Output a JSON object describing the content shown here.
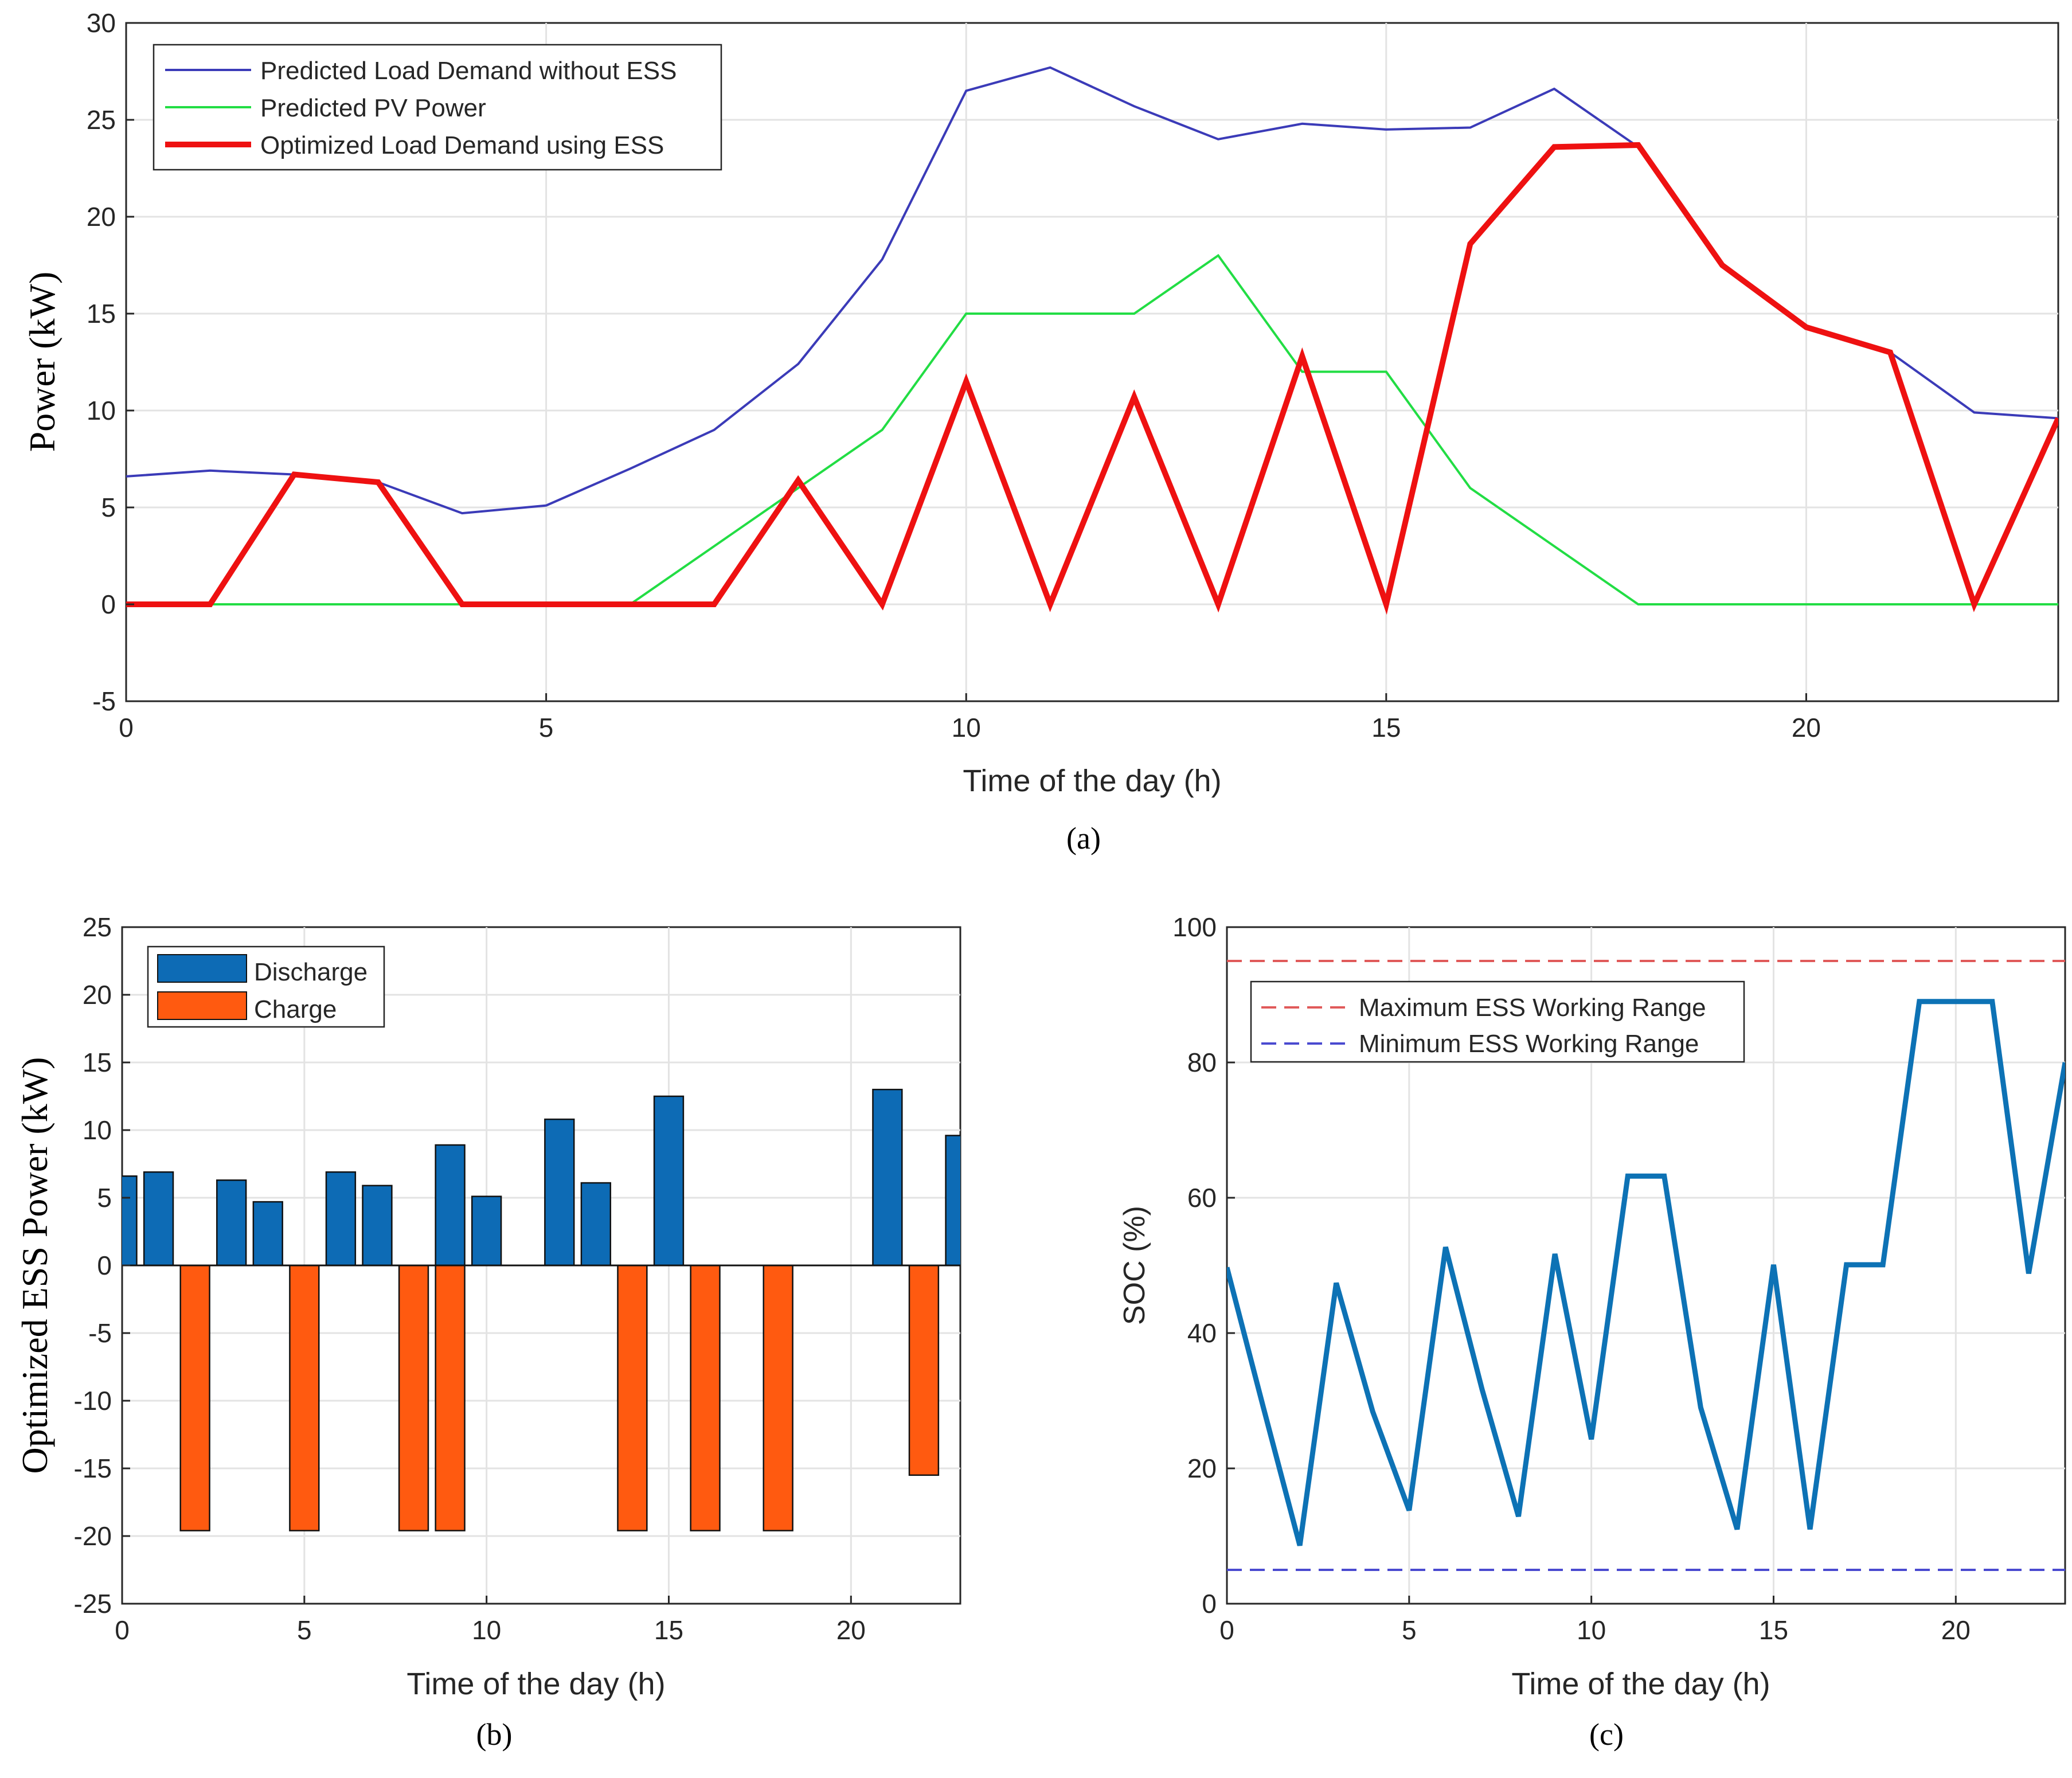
{
  "panels": {
    "a": {
      "caption": "(a)",
      "chart_data": {
        "type": "line",
        "title": "",
        "xlabel": "Time of the day (h)",
        "ylabel": "Power (kW)",
        "xlim": [
          0,
          23
        ],
        "ylim": [
          -5,
          30
        ],
        "xticks": [
          "0",
          "5",
          "10",
          "15",
          "20"
        ],
        "yticks": [
          "-5",
          "0",
          "5",
          "10",
          "15",
          "20",
          "25",
          "30"
        ],
        "x": [
          0,
          1,
          2,
          3,
          4,
          5,
          6,
          7,
          8,
          9,
          10,
          11,
          12,
          13,
          14,
          15,
          16,
          17,
          18,
          19,
          20,
          21,
          22,
          23
        ],
        "legend_position": "top-left",
        "series": [
          {
            "name": "Predicted Load Demand without ESS",
            "color": "#3b3bb8",
            "values": [
              6.6,
              6.9,
              6.7,
              6.3,
              4.7,
              5.1,
              7.0,
              9.0,
              12.4,
              17.8,
              26.5,
              27.7,
              25.7,
              24.0,
              24.8,
              24.5,
              24.6,
              26.6,
              23.6,
              17.5,
              14.3,
              13.0,
              9.9,
              9.6
            ]
          },
          {
            "name": "Predicted PV Power",
            "color": "#22dd44",
            "values": [
              0,
              0,
              0,
              0,
              0,
              0,
              0,
              3.0,
              6.0,
              9.0,
              15.0,
              15.0,
              15.0,
              18.0,
              12.0,
              12.0,
              6.0,
              3.0,
              0,
              0,
              0,
              0,
              0,
              0
            ]
          },
          {
            "name": "Optimized Load Demand using ESS",
            "color": "#ee1111",
            "values": [
              0,
              0,
              6.7,
              6.3,
              0,
              0,
              0,
              0,
              6.4,
              0,
              11.5,
              0,
              10.7,
              0,
              12.8,
              0,
              18.6,
              23.6,
              23.7,
              17.5,
              14.3,
              13.0,
              0,
              9.6
            ]
          }
        ]
      }
    },
    "b": {
      "caption": "(b)",
      "chart_data": {
        "type": "bar",
        "title": "",
        "xlabel": "Time of the day (h)",
        "ylabel": "Optimized ESS Power (kW)",
        "xlim": [
          0,
          23
        ],
        "ylim": [
          -25,
          25
        ],
        "xticks": [
          "0",
          "5",
          "10",
          "15",
          "20"
        ],
        "yticks": [
          "-25",
          "-20",
          "-15",
          "-10",
          "-5",
          "0",
          "5",
          "10",
          "15",
          "20",
          "25"
        ],
        "x": [
          0,
          1,
          2,
          3,
          4,
          5,
          6,
          7,
          8,
          9,
          10,
          11,
          12,
          13,
          14,
          15,
          16,
          17,
          18,
          19,
          20,
          21,
          22,
          23
        ],
        "legend_position": "top-left",
        "series": [
          {
            "name": "Discharge",
            "color": "#0d6bb5",
            "values": [
              6.6,
              6.9,
              0,
              6.3,
              4.7,
              0,
              6.9,
              5.9,
              0,
              8.9,
              5.1,
              0,
              10.8,
              6.1,
              0,
              12.5,
              0,
              0,
              0,
              0,
              0,
              13.0,
              0,
              9.6
            ]
          },
          {
            "name": "Charge",
            "color": "#ff5a10",
            "values": [
              0,
              0,
              -19.6,
              0,
              0,
              -19.6,
              0,
              0,
              -19.6,
              -19.6,
              0,
              0,
              0,
              0,
              -19.6,
              0,
              -19.6,
              0,
              -19.6,
              0,
              0,
              0,
              -15.5,
              0
            ]
          }
        ]
      }
    },
    "c": {
      "caption": "(c)",
      "chart_data": {
        "type": "line",
        "title": "",
        "xlabel": "Time of the day (h)",
        "ylabel": "SOC (%)",
        "xlim": [
          0,
          23
        ],
        "ylim": [
          0,
          100
        ],
        "xticks": [
          "0",
          "5",
          "10",
          "15",
          "20"
        ],
        "yticks": [
          "0",
          "20",
          "40",
          "60",
          "80",
          "100"
        ],
        "legend_position": "top-left",
        "series": [
          {
            "name": "SOC",
            "color": "#0d72b5",
            "x": [
              0,
              1,
              2,
              3,
              4,
              5,
              6,
              7,
              8,
              9,
              10,
              11,
              12,
              13,
              14,
              15,
              16,
              17,
              18,
              19,
              20,
              21,
              22,
              23
            ],
            "values": [
              49.7,
              29.0,
              8.6,
              47.4,
              28.4,
              13.8,
              52.7,
              31.7,
              12.9,
              51.7,
              24.3,
              63.2,
              63.2,
              29.0,
              11.0,
              50.1,
              11.0,
              50.1,
              50.1,
              89.0,
              89.0,
              89.0,
              48.8,
              80.0
            ]
          },
          {
            "name": "Maximum ESS Working Range",
            "color": "#e05a5a",
            "dashed": true,
            "x": [
              0,
              23
            ],
            "values": [
              95,
              95
            ]
          },
          {
            "name": "Minimum ESS Working Range",
            "color": "#4a4ad0",
            "dashed": true,
            "x": [
              0,
              23
            ],
            "values": [
              5,
              5
            ]
          }
        ]
      }
    }
  }
}
